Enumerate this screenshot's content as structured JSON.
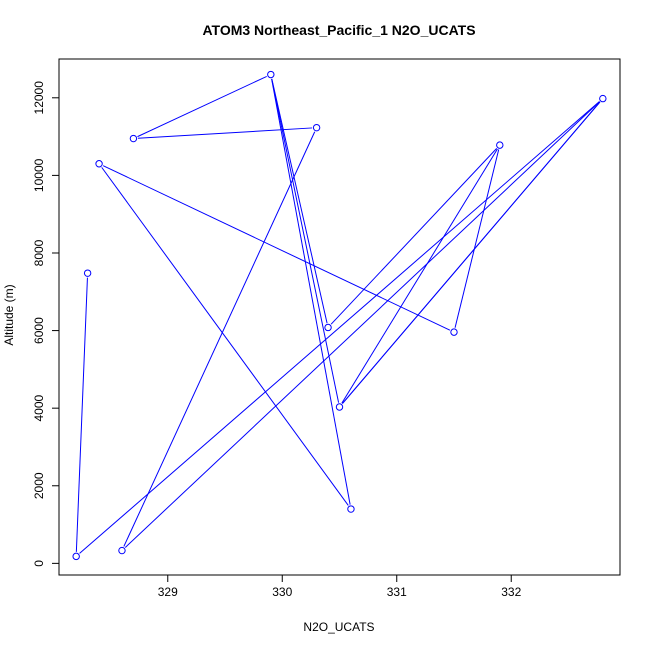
{
  "chart_data": {
    "type": "line",
    "title": "ATOM3 Northeast_Pacific_1 N2O_UCATS",
    "xlabel": "N2O_UCATS",
    "ylabel": "Altitude (m)",
    "xlim": [
      328.05,
      332.95
    ],
    "ylim": [
      -300,
      13000
    ],
    "x_ticks": [
      329,
      330,
      331,
      332
    ],
    "y_ticks": [
      0,
      2000,
      4000,
      6000,
      8000,
      10000,
      12000
    ],
    "grid": false,
    "legend": "none",
    "series": [
      {
        "color": "#0000ff",
        "marker": "open-circle",
        "points": [
          {
            "x": 328.3,
            "y": 7480
          },
          {
            "x": 328.2,
            "y": 180
          },
          {
            "x": 332.8,
            "y": 11980
          },
          {
            "x": 328.6,
            "y": 330
          },
          {
            "x": 330.3,
            "y": 11230
          },
          {
            "x": 328.7,
            "y": 10950
          },
          {
            "x": 329.9,
            "y": 12600
          },
          {
            "x": 330.5,
            "y": 4030
          },
          {
            "x": 332.8,
            "y": 11980
          },
          {
            "x": 330.5,
            "y": 4030
          },
          {
            "x": 331.9,
            "y": 10780
          },
          {
            "x": 331.5,
            "y": 5960
          },
          {
            "x": 328.4,
            "y": 10300
          },
          {
            "x": 330.6,
            "y": 1400
          },
          {
            "x": 329.9,
            "y": 12600
          },
          {
            "x": 330.4,
            "y": 6080
          },
          {
            "x": 331.9,
            "y": 10780
          }
        ]
      }
    ]
  }
}
